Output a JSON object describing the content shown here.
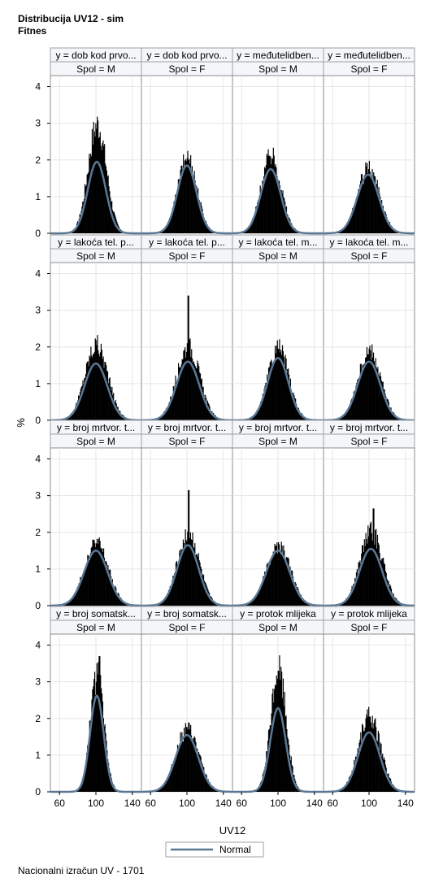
{
  "title": {
    "line1": "Distribucija UV12 - sim",
    "line2": "Fitnes"
  },
  "footnote": "Nacionalni izračun UV - 1701",
  "chart_data": {
    "type": "histogram-panel",
    "xlabel": "UV12",
    "ylabel": "%",
    "xticks": [
      60,
      100,
      140
    ],
    "yticks": [
      0,
      1,
      2,
      3,
      4
    ],
    "xlim": [
      50,
      150
    ],
    "ylim": [
      0,
      4.3
    ],
    "legend": {
      "label": "Normal",
      "placement": "bottom-center"
    },
    "colors": {
      "bars": "#000000",
      "curve": "#5a7895",
      "header_bg": "#f4f6fa",
      "grid": "#e6e6e6"
    },
    "panels": [
      {
        "row_label": "y = dob kod prvo...",
        "col_label": "Spol = M",
        "mean": 101,
        "sd": 10,
        "curve_peak": 1.95,
        "hist_peak": 2.95,
        "spike": 3.0,
        "spike_x": 101
      },
      {
        "row_label": "y = dob kod prvo...",
        "col_label": "Spol = F",
        "mean": 100,
        "sd": 10.5,
        "curve_peak": 1.85,
        "hist_peak": 2.05,
        "spike": 2.05,
        "spike_x": 100
      },
      {
        "row_label": "y = međutelidben...",
        "col_label": "Spol = M",
        "mean": 92,
        "sd": 11,
        "curve_peak": 1.75,
        "hist_peak": 2.1,
        "spike": 2.1,
        "spike_x": 91
      },
      {
        "row_label": "y = međutelidben...",
        "col_label": "Spol = F",
        "mean": 99,
        "sd": 12,
        "curve_peak": 1.6,
        "hist_peak": 1.75,
        "spike": 1.75,
        "spike_x": 99
      },
      {
        "row_label": "y = lakoća tel. p...",
        "col_label": "Spol = M",
        "mean": 100,
        "sd": 12.5,
        "curve_peak": 1.55,
        "hist_peak": 2.05,
        "spike": 2.05,
        "spike_x": 100
      },
      {
        "row_label": "y = lakoća tel. p...",
        "col_label": "Spol = F",
        "mean": 101,
        "sd": 12.5,
        "curve_peak": 1.6,
        "hist_peak": 2.0,
        "spike": 3.4,
        "spike_x": 101
      },
      {
        "row_label": "y = lakoća tel. m...",
        "col_label": "Spol = M",
        "mean": 100,
        "sd": 11.5,
        "curve_peak": 1.7,
        "hist_peak": 1.95,
        "spike": 1.95,
        "spike_x": 100
      },
      {
        "row_label": "y = lakoća tel. m...",
        "col_label": "Spol = F",
        "mean": 100,
        "sd": 12.5,
        "curve_peak": 1.6,
        "hist_peak": 1.85,
        "spike": 1.85,
        "spike_x": 100
      },
      {
        "row_label": "y = broj mrtvor. t...",
        "col_label": "Spol = M",
        "mean": 100,
        "sd": 13,
        "curve_peak": 1.5,
        "hist_peak": 1.7,
        "spike": 1.7,
        "spike_x": 100
      },
      {
        "row_label": "y = broj mrtvor. t...",
        "col_label": "Spol = F",
        "mean": 101,
        "sd": 12,
        "curve_peak": 1.65,
        "hist_peak": 1.95,
        "spike": 3.15,
        "spike_x": 101
      },
      {
        "row_label": "y = broj mrtvor. t...",
        "col_label": "Spol = M",
        "mean": 100,
        "sd": 13,
        "curve_peak": 1.5,
        "hist_peak": 1.65,
        "spike": 1.65,
        "spike_x": 100
      },
      {
        "row_label": "y = broj mrtvor. t...",
        "col_label": "Spol = F",
        "mean": 102,
        "sd": 12.5,
        "curve_peak": 1.55,
        "hist_peak": 2.0,
        "spike": 2.65,
        "spike_x": 104
      },
      {
        "row_label": "y = broj somatsk...",
        "col_label": "Spol = M",
        "mean": 101,
        "sd": 7.5,
        "curve_peak": 2.62,
        "hist_peak": 3.2,
        "spike": 3.7,
        "spike_x": 103
      },
      {
        "row_label": "y = broj somatsk...",
        "col_label": "Spol = F",
        "mean": 100,
        "sd": 12.5,
        "curve_peak": 1.55,
        "hist_peak": 1.7,
        "spike": 1.7,
        "spike_x": 100
      },
      {
        "row_label": "y = protok mlijeka",
        "col_label": "Spol = M",
        "mean": 100,
        "sd": 8.5,
        "curve_peak": 2.28,
        "hist_peak": 3.3,
        "spike": 3.3,
        "spike_x": 100
      },
      {
        "row_label": "y = protok mlijeka",
        "col_label": "Spol = F",
        "mean": 100,
        "sd": 12,
        "curve_peak": 1.62,
        "hist_peak": 2.05,
        "spike": 2.05,
        "spike_x": 100
      }
    ]
  }
}
